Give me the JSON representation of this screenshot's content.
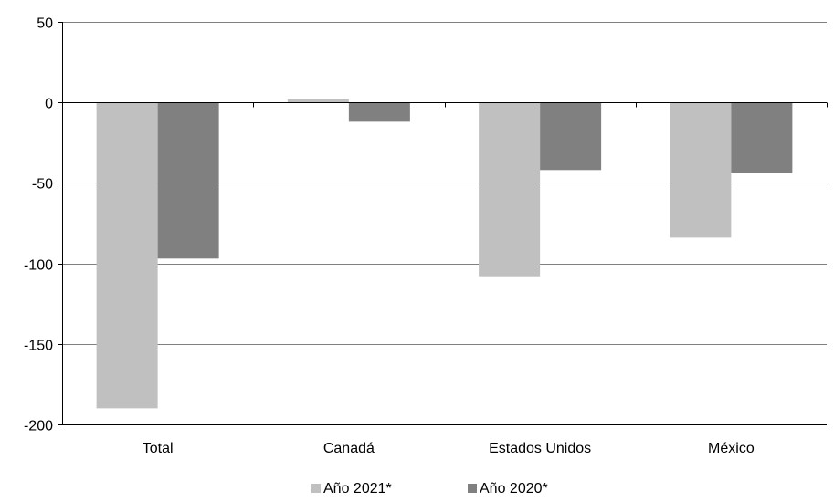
{
  "chart_data": {
    "type": "bar",
    "title": "",
    "xlabel": "",
    "ylabel": "",
    "categories": [
      "Total",
      "Canadá",
      "Estados Unidos",
      "México"
    ],
    "series": [
      {
        "name": "Año 2021*",
        "values": [
          -190,
          2,
          -108,
          -84
        ]
      },
      {
        "name": "Año 2020*",
        "values": [
          -97,
          -12,
          -42,
          -44
        ]
      }
    ],
    "ylim": [
      -200,
      50
    ],
    "yticks": [
      50,
      0,
      -50,
      -100,
      -150,
      -200
    ],
    "ytick_labels": [
      "50",
      "0",
      "-50",
      "-100",
      "-150",
      "-200"
    ],
    "grid": true,
    "legend_position": "bottom-center",
    "colors": {
      "series": [
        "#c0c0c0",
        "#808080"
      ],
      "grid": "#808080",
      "axis": "#000000",
      "text": "#000000"
    }
  }
}
